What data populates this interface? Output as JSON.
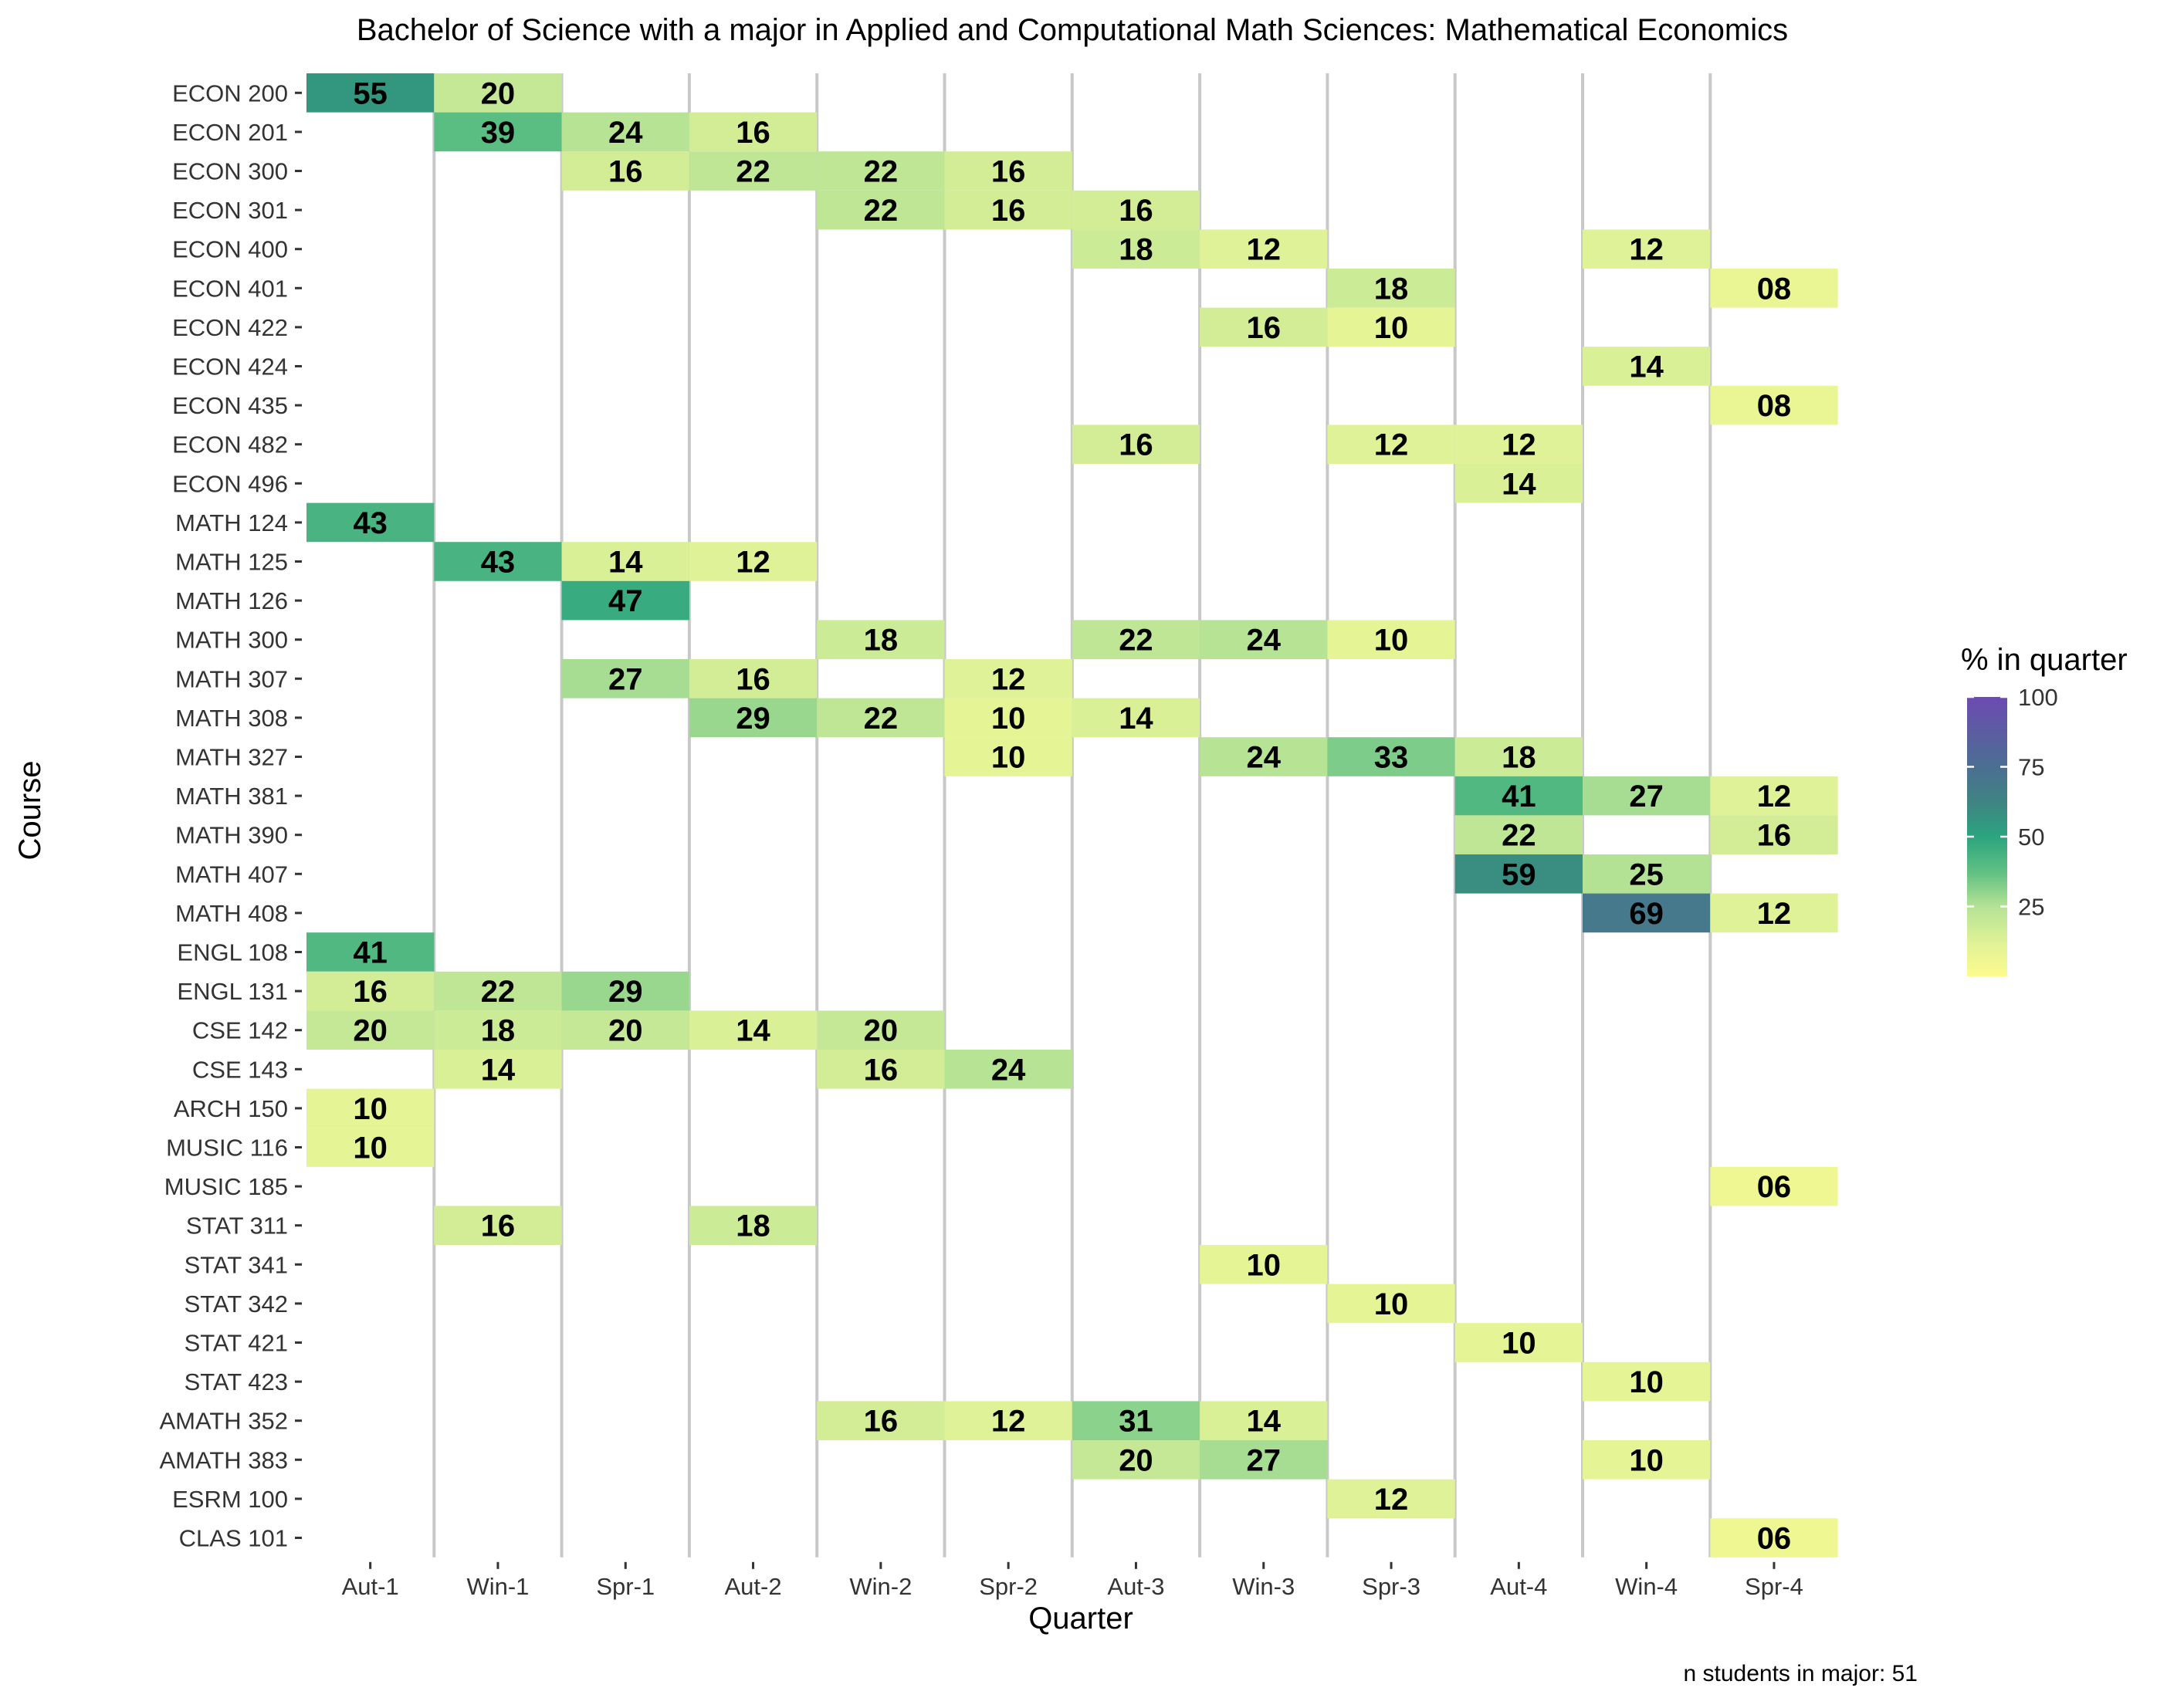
{
  "chart_data": {
    "type": "heatmap",
    "title": "Bachelor of Science with a major in Applied and Computational Math Sciences: Mathematical  Economics",
    "xlabel": "Quarter",
    "ylabel": "Course",
    "x_categories": [
      "Aut-1",
      "Win-1",
      "Spr-1",
      "Aut-2",
      "Win-2",
      "Spr-2",
      "Aut-3",
      "Win-3",
      "Spr-3",
      "Aut-4",
      "Win-4",
      "Spr-4"
    ],
    "y_categories": [
      "ECON 200",
      "ECON 201",
      "ECON 300",
      "ECON 301",
      "ECON 400",
      "ECON 401",
      "ECON 422",
      "ECON 424",
      "ECON 435",
      "ECON 482",
      "ECON 496",
      "MATH 124",
      "MATH 125",
      "MATH 126",
      "MATH 300",
      "MATH 307",
      "MATH 308",
      "MATH 327",
      "MATH 381",
      "MATH 390",
      "MATH 407",
      "MATH 408",
      "ENGL 108",
      "ENGL 131",
      "CSE 142",
      "CSE 143",
      "ARCH 150",
      "MUSIC 116",
      "MUSIC 185",
      "STAT 311",
      "STAT 341",
      "STAT 342",
      "STAT 421",
      "STAT 423",
      "AMATH 352",
      "AMATH 383",
      "ESRM 100",
      "CLAS 101"
    ],
    "cells": [
      {
        "course": "ECON 200",
        "quarter": "Aut-1",
        "value": 55,
        "label": "55"
      },
      {
        "course": "ECON 200",
        "quarter": "Win-1",
        "value": 20,
        "label": "20"
      },
      {
        "course": "ECON 201",
        "quarter": "Win-1",
        "value": 39,
        "label": "39"
      },
      {
        "course": "ECON 201",
        "quarter": "Spr-1",
        "value": 24,
        "label": "24"
      },
      {
        "course": "ECON 201",
        "quarter": "Aut-2",
        "value": 16,
        "label": "16"
      },
      {
        "course": "ECON 300",
        "quarter": "Spr-1",
        "value": 16,
        "label": "16"
      },
      {
        "course": "ECON 300",
        "quarter": "Aut-2",
        "value": 22,
        "label": "22"
      },
      {
        "course": "ECON 300",
        "quarter": "Win-2",
        "value": 22,
        "label": "22"
      },
      {
        "course": "ECON 300",
        "quarter": "Spr-2",
        "value": 16,
        "label": "16"
      },
      {
        "course": "ECON 301",
        "quarter": "Win-2",
        "value": 22,
        "label": "22"
      },
      {
        "course": "ECON 301",
        "quarter": "Spr-2",
        "value": 16,
        "label": "16"
      },
      {
        "course": "ECON 301",
        "quarter": "Aut-3",
        "value": 16,
        "label": "16"
      },
      {
        "course": "ECON 400",
        "quarter": "Aut-3",
        "value": 18,
        "label": "18"
      },
      {
        "course": "ECON 400",
        "quarter": "Win-3",
        "value": 12,
        "label": "12"
      },
      {
        "course": "ECON 400",
        "quarter": "Win-4",
        "value": 12,
        "label": "12"
      },
      {
        "course": "ECON 401",
        "quarter": "Spr-3",
        "value": 18,
        "label": "18"
      },
      {
        "course": "ECON 401",
        "quarter": "Spr-4",
        "value": 8,
        "label": "08"
      },
      {
        "course": "ECON 422",
        "quarter": "Win-3",
        "value": 16,
        "label": "16"
      },
      {
        "course": "ECON 422",
        "quarter": "Spr-3",
        "value": 10,
        "label": "10"
      },
      {
        "course": "ECON 424",
        "quarter": "Win-4",
        "value": 14,
        "label": "14"
      },
      {
        "course": "ECON 435",
        "quarter": "Spr-4",
        "value": 8,
        "label": "08"
      },
      {
        "course": "ECON 482",
        "quarter": "Aut-3",
        "value": 16,
        "label": "16"
      },
      {
        "course": "ECON 482",
        "quarter": "Spr-3",
        "value": 12,
        "label": "12"
      },
      {
        "course": "ECON 482",
        "quarter": "Aut-4",
        "value": 12,
        "label": "12"
      },
      {
        "course": "ECON 496",
        "quarter": "Aut-4",
        "value": 14,
        "label": "14"
      },
      {
        "course": "MATH 124",
        "quarter": "Aut-1",
        "value": 43,
        "label": "43"
      },
      {
        "course": "MATH 125",
        "quarter": "Win-1",
        "value": 43,
        "label": "43"
      },
      {
        "course": "MATH 125",
        "quarter": "Spr-1",
        "value": 14,
        "label": "14"
      },
      {
        "course": "MATH 125",
        "quarter": "Aut-2",
        "value": 12,
        "label": "12"
      },
      {
        "course": "MATH 126",
        "quarter": "Spr-1",
        "value": 47,
        "label": "47"
      },
      {
        "course": "MATH 300",
        "quarter": "Win-2",
        "value": 18,
        "label": "18"
      },
      {
        "course": "MATH 300",
        "quarter": "Aut-3",
        "value": 22,
        "label": "22"
      },
      {
        "course": "MATH 300",
        "quarter": "Win-3",
        "value": 24,
        "label": "24"
      },
      {
        "course": "MATH 300",
        "quarter": "Spr-3",
        "value": 10,
        "label": "10"
      },
      {
        "course": "MATH 307",
        "quarter": "Spr-1",
        "value": 27,
        "label": "27"
      },
      {
        "course": "MATH 307",
        "quarter": "Aut-2",
        "value": 16,
        "label": "16"
      },
      {
        "course": "MATH 307",
        "quarter": "Spr-2",
        "value": 12,
        "label": "12"
      },
      {
        "course": "MATH 308",
        "quarter": "Aut-2",
        "value": 29,
        "label": "29"
      },
      {
        "course": "MATH 308",
        "quarter": "Win-2",
        "value": 22,
        "label": "22"
      },
      {
        "course": "MATH 308",
        "quarter": "Spr-2",
        "value": 10,
        "label": "10"
      },
      {
        "course": "MATH 308",
        "quarter": "Aut-3",
        "value": 14,
        "label": "14"
      },
      {
        "course": "MATH 327",
        "quarter": "Spr-2",
        "value": 10,
        "label": "10"
      },
      {
        "course": "MATH 327",
        "quarter": "Win-3",
        "value": 24,
        "label": "24"
      },
      {
        "course": "MATH 327",
        "quarter": "Spr-3",
        "value": 33,
        "label": "33"
      },
      {
        "course": "MATH 327",
        "quarter": "Aut-4",
        "value": 18,
        "label": "18"
      },
      {
        "course": "MATH 381",
        "quarter": "Aut-4",
        "value": 41,
        "label": "41"
      },
      {
        "course": "MATH 381",
        "quarter": "Win-4",
        "value": 27,
        "label": "27"
      },
      {
        "course": "MATH 381",
        "quarter": "Spr-4",
        "value": 12,
        "label": "12"
      },
      {
        "course": "MATH 390",
        "quarter": "Aut-4",
        "value": 22,
        "label": "22"
      },
      {
        "course": "MATH 390",
        "quarter": "Spr-4",
        "value": 16,
        "label": "16"
      },
      {
        "course": "MATH 407",
        "quarter": "Aut-4",
        "value": 59,
        "label": "59"
      },
      {
        "course": "MATH 407",
        "quarter": "Win-4",
        "value": 25,
        "label": "25"
      },
      {
        "course": "MATH 408",
        "quarter": "Win-4",
        "value": 69,
        "label": "69"
      },
      {
        "course": "MATH 408",
        "quarter": "Spr-4",
        "value": 12,
        "label": "12"
      },
      {
        "course": "ENGL 108",
        "quarter": "Aut-1",
        "value": 41,
        "label": "41"
      },
      {
        "course": "ENGL 131",
        "quarter": "Aut-1",
        "value": 16,
        "label": "16"
      },
      {
        "course": "ENGL 131",
        "quarter": "Win-1",
        "value": 22,
        "label": "22"
      },
      {
        "course": "ENGL 131",
        "quarter": "Spr-1",
        "value": 29,
        "label": "29"
      },
      {
        "course": "CSE 142",
        "quarter": "Aut-1",
        "value": 20,
        "label": "20"
      },
      {
        "course": "CSE 142",
        "quarter": "Win-1",
        "value": 18,
        "label": "18"
      },
      {
        "course": "CSE 142",
        "quarter": "Spr-1",
        "value": 20,
        "label": "20"
      },
      {
        "course": "CSE 142",
        "quarter": "Aut-2",
        "value": 14,
        "label": "14"
      },
      {
        "course": "CSE 142",
        "quarter": "Win-2",
        "value": 20,
        "label": "20"
      },
      {
        "course": "CSE 143",
        "quarter": "Win-1",
        "value": 14,
        "label": "14"
      },
      {
        "course": "CSE 143",
        "quarter": "Win-2",
        "value": 16,
        "label": "16"
      },
      {
        "course": "CSE 143",
        "quarter": "Spr-2",
        "value": 24,
        "label": "24"
      },
      {
        "course": "ARCH 150",
        "quarter": "Aut-1",
        "value": 10,
        "label": "10"
      },
      {
        "course": "MUSIC 116",
        "quarter": "Aut-1",
        "value": 10,
        "label": "10"
      },
      {
        "course": "MUSIC 185",
        "quarter": "Spr-4",
        "value": 6,
        "label": "06"
      },
      {
        "course": "STAT 311",
        "quarter": "Win-1",
        "value": 16,
        "label": "16"
      },
      {
        "course": "STAT 311",
        "quarter": "Aut-2",
        "value": 18,
        "label": "18"
      },
      {
        "course": "STAT 341",
        "quarter": "Win-3",
        "value": 10,
        "label": "10"
      },
      {
        "course": "STAT 342",
        "quarter": "Spr-3",
        "value": 10,
        "label": "10"
      },
      {
        "course": "STAT 421",
        "quarter": "Aut-4",
        "value": 10,
        "label": "10"
      },
      {
        "course": "STAT 423",
        "quarter": "Win-4",
        "value": 10,
        "label": "10"
      },
      {
        "course": "AMATH 352",
        "quarter": "Win-2",
        "value": 16,
        "label": "16"
      },
      {
        "course": "AMATH 352",
        "quarter": "Spr-2",
        "value": 12,
        "label": "12"
      },
      {
        "course": "AMATH 352",
        "quarter": "Aut-3",
        "value": 31,
        "label": "31"
      },
      {
        "course": "AMATH 352",
        "quarter": "Win-3",
        "value": 14,
        "label": "14"
      },
      {
        "course": "AMATH 383",
        "quarter": "Aut-3",
        "value": 20,
        "label": "20"
      },
      {
        "course": "AMATH 383",
        "quarter": "Win-3",
        "value": 27,
        "label": "27"
      },
      {
        "course": "AMATH 383",
        "quarter": "Win-4",
        "value": 10,
        "label": "10"
      },
      {
        "course": "ESRM 100",
        "quarter": "Spr-3",
        "value": 12,
        "label": "12"
      },
      {
        "course": "CLAS 101",
        "quarter": "Spr-4",
        "value": 6,
        "label": "06"
      }
    ],
    "legend": {
      "title": "% in quarter",
      "placement": "right",
      "ticks": [
        25,
        50,
        75,
        100
      ],
      "range": [
        0,
        100
      ],
      "gradient_stops": [
        {
          "value": 0,
          "color": "#FDFB8D"
        },
        {
          "value": 12,
          "color": "#E0F297"
        },
        {
          "value": 25,
          "color": "#B4E295"
        },
        {
          "value": 37,
          "color": "#62C183"
        },
        {
          "value": 50,
          "color": "#2BA47F"
        },
        {
          "value": 62,
          "color": "#3E8582"
        },
        {
          "value": 75,
          "color": "#4B6E92"
        },
        {
          "value": 100,
          "color": "#6D4BB2"
        }
      ]
    },
    "grid": {
      "vertical_separators": true,
      "separator_color": "#C8C8C8"
    },
    "footnote": "n students in major: 51"
  }
}
